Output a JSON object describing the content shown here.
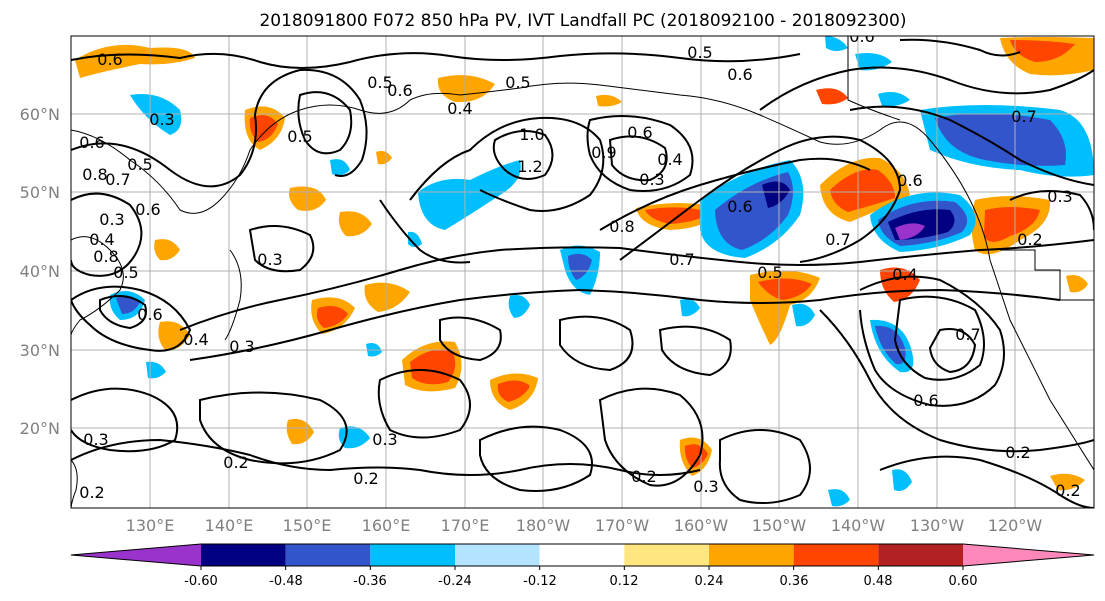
{
  "title": "2018091800 F072 850 hPa PV, IVT Landfall PC (2018092100 - 2018092300)",
  "latitude_labels": [
    "60°N",
    "50°N",
    "40°N",
    "30°N",
    "20°N"
  ],
  "longitude_labels": [
    "130°E",
    "140°E",
    "150°E",
    "160°E",
    "170°E",
    "180°W",
    "170°W",
    "160°W",
    "150°W",
    "140°W",
    "130°W",
    "120°W"
  ],
  "colorbar": {
    "tick_labels": [
      "-0.60",
      "-0.48",
      "-0.36",
      "-0.24",
      "-0.12",
      "0.12",
      "0.24",
      "0.36",
      "0.48",
      "0.60"
    ],
    "colors": [
      "#9933cc",
      "#000080",
      "#3355cc",
      "#00bfff",
      "#b3e3ff",
      "#ffffff",
      "#ffe680",
      "#ffa500",
      "#ff4500",
      "#b22222",
      "#ff88bb"
    ]
  },
  "contour_labels": [
    "0.6",
    "0.3",
    "0.6",
    "0.8",
    "0.5",
    "0.7",
    "0.4",
    "0.8",
    "0.6",
    "0.5",
    "0.5",
    "0.4",
    "0.5",
    "0.6",
    "1.0",
    "1.2",
    "0.9",
    "0.6",
    "0.4",
    "0.3",
    "0.6",
    "0.8",
    "0.7",
    "0.6",
    "0.7",
    "0.5",
    "0.6",
    "0.2",
    "0.7",
    "0.3",
    "0.3",
    "0.2",
    "0.3",
    "0.2",
    "0.3",
    "0.3",
    "0.6",
    "0.4",
    "0.2",
    "0.7",
    "0.4",
    "0.6",
    "0.3",
    "0.5",
    "0.3",
    "0.6",
    "0.5",
    "0.2",
    "0.2",
    "0.2"
  ]
}
